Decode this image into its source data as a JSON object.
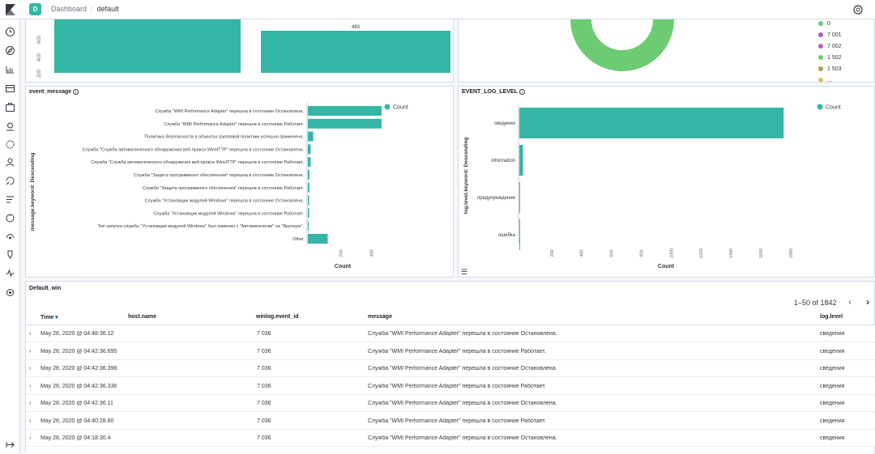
{
  "header": {
    "space_initial": "D",
    "breadcrumb": [
      "Dashboard",
      "default"
    ]
  },
  "sidenav": {
    "icons": [
      "clock-icon",
      "compass-icon",
      "bar-chart-icon",
      "dashboard-icon",
      "canvas-icon",
      "maps-icon",
      "ml-icon",
      "metrics-icon",
      "logs-icon",
      "apm-icon",
      "uptime-icon",
      "siem-icon",
      "devtools-icon",
      "monitoring-icon",
      "management-icon"
    ],
    "collapse_icon": "collapse-icon"
  },
  "top_left_panel": {
    "bar_label": "483",
    "y_ticks": [
      "200",
      "400",
      "600"
    ]
  },
  "top_right_panel": {
    "legend": [
      {
        "label": "0",
        "color": "#6dcc73"
      },
      {
        "label": "7 001",
        "color": "#a65cc4"
      },
      {
        "label": "7 002",
        "color": "#c25ec3"
      },
      {
        "label": "1 502",
        "color": "#6dcc73"
      },
      {
        "label": "1 503",
        "color": "#b0a24a"
      },
      {
        "label": "...",
        "color": "#d6bf57"
      }
    ],
    "donut_color": "#6dcc73"
  },
  "event_message": {
    "title": "event_message",
    "legend_label": "Count",
    "color": "#35b5a6",
    "chart_data": {
      "type": "bar",
      "orientation": "horizontal",
      "ylabel": "message.keyword: Descending",
      "xlabel": "Count",
      "categories": [
        "Служба \"WMI Performance Adapter\" перешла в состояние Остановлена.",
        "Служба \"WMI Performance Adapter\" перешла в состояние Работает.",
        "Политика безопасности в объектах групповой политики успешно применена.",
        "Служба \"Служба автоматического обнаружения веб-прокси WinHTTP\" перешла в состояние Остановлена.",
        "Служба \"Служба автоматического обнаружения веб-прокси WinHTTP\" перешла в состояние Работает.",
        "Служба \"Защита программного обеспечения\" перешла в состояние Остановлена.",
        "Служба \"Защита программного обеспечения\" перешла в состояние Работает.",
        "Служба \"Установщик модулей Windows\" перешла в состояние Остановлена.",
        "Служба \"Установщик модулей Windows\" перешла в состояние Работает.",
        "Тип запуска службы \"Установщик модулей Windows\" был изменен с \"Автоматически\" на \"Вручную\".",
        "Other"
      ],
      "values": [
        483,
        483,
        35,
        18,
        18,
        10,
        10,
        8,
        8,
        3,
        130
      ],
      "x_ticks": [
        200,
        400
      ],
      "xlim": [
        0,
        600
      ]
    }
  },
  "event_log_level": {
    "title": "EVENT_LOG_LEVEL",
    "legend_label": "Count",
    "color": "#35b5a6",
    "chart_data": {
      "type": "bar",
      "orientation": "horizontal",
      "ylabel": "log.level.keyword: Descending",
      "xlabel": "Count",
      "categories": [
        "сведения",
        "information",
        "предупреждение",
        "ошибка"
      ],
      "values": [
        1770,
        25,
        4,
        2
      ],
      "x_ticks": [
        200,
        400,
        600,
        800,
        1000,
        1200,
        1400,
        1600,
        1800
      ],
      "xlim": [
        0,
        1850
      ]
    }
  },
  "table": {
    "title": "Default_win",
    "pagination": "1–50 of 1842",
    "columns": [
      "Time",
      "host.name",
      "winlog.event_id",
      "message",
      "log.level"
    ],
    "rows": [
      {
        "time": "May 28, 2020 @ 04:48:36.12",
        "event_id": "7 036",
        "message": "Служба \"WMI Performance Adapter\" перешла в состояние Остановлена.",
        "level": "сведения"
      },
      {
        "time": "May 28, 2020 @ 04:42:36.695",
        "event_id": "7 036",
        "message": "Служба \"WMI Performance Adapter\" перешла в состояние Работает.",
        "level": "сведения"
      },
      {
        "time": "May 28, 2020 @ 04:42:36.398",
        "event_id": "7 036",
        "message": "Служба \"WMI Performance Adapter\" перешла в состояние Остановлена.",
        "level": "сведения"
      },
      {
        "time": "May 28, 2020 @ 04:42:36.336",
        "event_id": "7 036",
        "message": "Служба \"WMI Performance Adapter\" перешла в состояние Работает.",
        "level": "сведения"
      },
      {
        "time": "May 28, 2020 @ 04:42:36.11",
        "event_id": "7 036",
        "message": "Служба \"WMI Performance Adapter\" перешла в состояние Остановлена.",
        "level": "сведения"
      },
      {
        "time": "May 28, 2020 @ 04:40:28.80",
        "event_id": "7 036",
        "message": "Служба \"WMI Performance Adapter\" перешла в состояние Работает.",
        "level": "сведения"
      },
      {
        "time": "May 28, 2020 @ 04:18:30.4",
        "event_id": "7 036",
        "message": "Служба \"WMI Performance Adapter\" перешла в состояние Остановлена.",
        "level": "сведения"
      }
    ]
  }
}
